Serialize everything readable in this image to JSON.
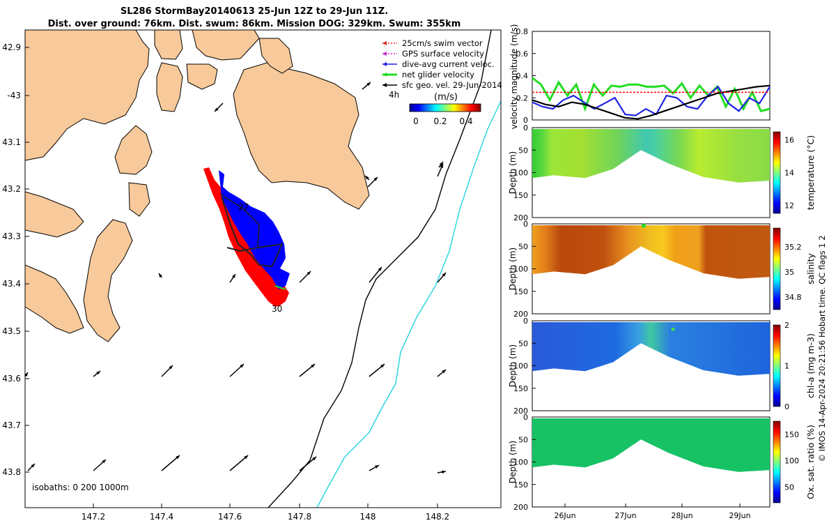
{
  "title": {
    "line1": "SL286 StormBay20140613 25-Jun 12Z to 29-Jun 11Z.",
    "line2": "Dist. over ground: 76km. Dist. swum: 86km. Mission DOG: 329km. Swum: 355km"
  },
  "map": {
    "lon_ticks": [
      "147.2",
      "147.4",
      "147.6",
      "147.8",
      "148",
      "148.2"
    ],
    "lat_ticks": [
      "42.9",
      "-43",
      "43.1",
      "43.2",
      "43.3",
      "43.4",
      "43.5",
      "43.6",
      "43.7",
      "43.8"
    ],
    "legend": [
      {
        "label": "25cm/s swim vector",
        "color": "#e0201e"
      },
      {
        "label": "GPS surface velocity",
        "color": "#d020d0"
      },
      {
        "label": "dive-avg current veloc.",
        "color": "#1f22e6"
      },
      {
        "label": "net glider velocity",
        "color": "#22dd22"
      },
      {
        "label": "sfc geo. vel. 29-Jun-2014",
        "color": "#000000"
      }
    ],
    "legend_extra": "4h",
    "colorbar": {
      "label": "(m/s)",
      "ticks": [
        "0",
        "0.2",
        "0.4"
      ]
    },
    "track_labels": [
      "27",
      "30"
    ],
    "isobath_label": "isobaths: 0   200  1000m",
    "colors": {
      "land": "#f8c99a",
      "isobath200": "#000000",
      "isobath1000": "#22d4e0",
      "track_red": "#ff0000",
      "track_blue": "#0000ff"
    }
  },
  "chart_data": [
    {
      "type": "line",
      "ylabel": "velocity magnitude (m/s)",
      "ylim": [
        0,
        0.8
      ],
      "yticks": [
        "0",
        "0.2",
        "0.4",
        "0.6",
        "0.8"
      ],
      "xlim": [
        "25-Jun 12Z",
        "29-Jun 11Z"
      ],
      "series": [
        {
          "color": "#22dd22",
          "values": [
            0.38,
            0.32,
            0.18,
            0.34,
            0.22,
            0.32,
            0.1,
            0.32,
            0.22,
            0.31,
            0.3,
            0.32,
            0.32,
            0.3,
            0.3,
            0.31,
            0.24,
            0.33,
            0.2,
            0.31,
            0.22,
            0.3,
            0.12,
            0.28,
            0.1,
            0.25,
            0.08,
            0.1
          ]
        },
        {
          "color": "#1f22e6",
          "values": [
            0.16,
            0.12,
            0.1,
            0.18,
            0.22,
            0.16,
            0.1,
            0.15,
            0.2,
            0.05,
            0.04,
            0.1,
            0.05,
            0.22,
            0.2,
            0.12,
            0.1,
            0.22,
            0.3,
            0.15,
            0.08,
            0.2,
            0.15,
            0.3
          ]
        },
        {
          "color": "#000000",
          "values": [
            0.18,
            0.14,
            0.12,
            0.16,
            0.14,
            0.1,
            0.06,
            0.02,
            0.01,
            0.04,
            0.08,
            0.12,
            0.16,
            0.2,
            0.24,
            0.26,
            0.28,
            0.3,
            0.31
          ]
        },
        {
          "color": "#ff0000",
          "values": [
            0.25,
            0.25,
            0.25,
            0.25,
            0.25,
            0.25,
            0.25,
            0.25
          ]
        }
      ]
    },
    {
      "type": "heatmap",
      "ylabel": "Depth (m)",
      "yticks": [
        "0",
        "50",
        "100",
        "150",
        "200"
      ],
      "colorbar_label": "temperature (°C)",
      "cticks": [
        "12",
        "14",
        "16"
      ],
      "clim": [
        11.5,
        16.5
      ]
    },
    {
      "type": "heatmap",
      "ylabel": "Depth (m)",
      "yticks": [
        "0",
        "50",
        "100",
        "150",
        "200"
      ],
      "colorbar_label": "salinity",
      "cticks": [
        "34.8",
        "35",
        "35.2"
      ],
      "clim": [
        34.7,
        35.35
      ]
    },
    {
      "type": "heatmap",
      "ylabel": "Depth (m)",
      "yticks": [
        "0",
        "50",
        "100",
        "150",
        "200"
      ],
      "colorbar_label": "chl-a (mg m-3)",
      "cticks": [
        "0",
        "1",
        "2"
      ],
      "clim": [
        0,
        2
      ]
    },
    {
      "type": "heatmap",
      "ylabel": "Depth (m)",
      "yticks": [
        "0",
        "50",
        "100",
        "150",
        "200"
      ],
      "colorbar_label": "Ox. sat. ratio (%)",
      "cticks": [
        "50",
        "100",
        "150"
      ],
      "clim": [
        20,
        175
      ]
    }
  ],
  "time_axis": {
    "ticks": [
      "26Jun",
      "27Jun",
      "28Jun",
      "29Jun"
    ]
  },
  "side_text": "© IMOS 14-Apr-2024 20:21:56 Hobart time. QC flags 1  2"
}
